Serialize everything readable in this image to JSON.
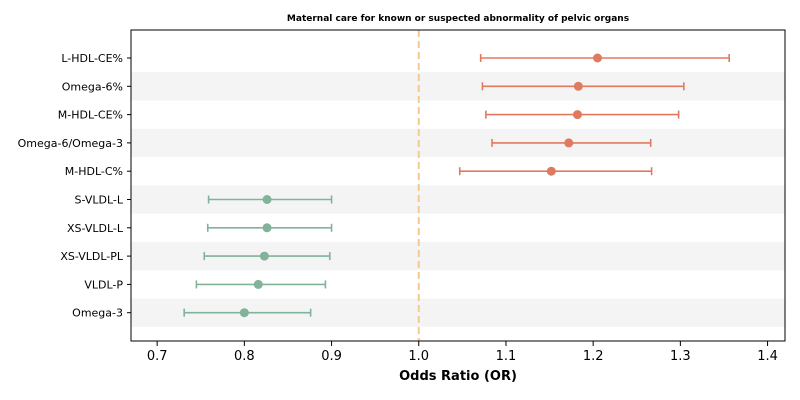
{
  "chart_data": {
    "type": "forest",
    "title": "Maternal care for known or suspected abnormality of pelvic organs",
    "xlabel": "Odds Ratio (OR)",
    "ylabel": "",
    "xlim": [
      0.67,
      1.42
    ],
    "x_ticks": [
      "0.7",
      "0.8",
      "0.9",
      "1.0",
      "1.1",
      "1.2",
      "1.3",
      "1.4"
    ],
    "reference_line": 1.0,
    "grid": false,
    "alternate_row_shading": true,
    "colors": {
      "risk": "#e07a5f",
      "protective": "#81b29a",
      "reference": "#f2cc8f",
      "row_shade": "#f4f4f4"
    },
    "rows": [
      {
        "label": "L-HDL-CE%",
        "or": 1.205,
        "lower": 1.071,
        "upper": 1.356
      },
      {
        "label": "Omega-6%",
        "or": 1.183,
        "lower": 1.073,
        "upper": 1.304
      },
      {
        "label": "M-HDL-CE%",
        "or": 1.182,
        "lower": 1.077,
        "upper": 1.298
      },
      {
        "label": "Omega-6/Omega-3",
        "or": 1.172,
        "lower": 1.084,
        "upper": 1.266
      },
      {
        "label": "M-HDL-C%",
        "or": 1.152,
        "lower": 1.047,
        "upper": 1.267
      },
      {
        "label": "S-VLDL-L",
        "or": 0.826,
        "lower": 0.759,
        "upper": 0.9
      },
      {
        "label": "XS-VLDL-L",
        "or": 0.826,
        "lower": 0.758,
        "upper": 0.9
      },
      {
        "label": "XS-VLDL-PL",
        "or": 0.823,
        "lower": 0.754,
        "upper": 0.898
      },
      {
        "label": "VLDL-P",
        "or": 0.816,
        "lower": 0.745,
        "upper": 0.893
      },
      {
        "label": "Omega-3",
        "or": 0.8,
        "lower": 0.731,
        "upper": 0.876
      }
    ]
  }
}
